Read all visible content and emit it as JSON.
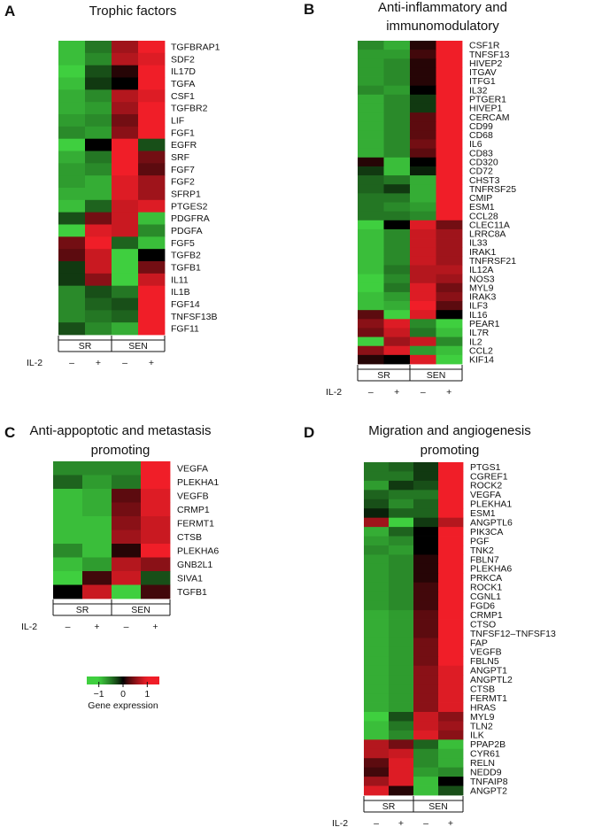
{
  "chart_data": [
    {
      "type": "heatmap",
      "panel_letter": "A",
      "title": [
        "Trophic factors"
      ],
      "columns": [
        "SR -",
        "SR +",
        "SEN -",
        "SEN +"
      ],
      "groups": [
        "SR",
        "SEN"
      ],
      "il2_label": "IL-2",
      "il2_signs": [
        "–",
        "+",
        "–",
        "+"
      ],
      "rows": [
        {
          "gene": "TGFBRAP1",
          "values": [
            -0.9,
            -0.5,
            0.6,
            1.0
          ]
        },
        {
          "gene": "SDF2",
          "values": [
            -0.9,
            -0.6,
            0.7,
            0.9
          ]
        },
        {
          "gene": "IL17D",
          "values": [
            -1.0,
            -0.3,
            0.1,
            1.0
          ]
        },
        {
          "gene": "TGFA",
          "values": [
            -0.9,
            -0.2,
            0.0,
            1.0
          ]
        },
        {
          "gene": "CSF1",
          "values": [
            -0.8,
            -0.6,
            0.7,
            0.9
          ]
        },
        {
          "gene": "TGFBR2",
          "values": [
            -0.8,
            -0.7,
            0.6,
            1.0
          ]
        },
        {
          "gene": "LIF",
          "values": [
            -0.7,
            -0.6,
            0.4,
            1.0
          ]
        },
        {
          "gene": "FGF1",
          "values": [
            -0.6,
            -0.7,
            0.5,
            1.0
          ]
        },
        {
          "gene": "EGFR",
          "values": [
            -1.0,
            0.0,
            1.0,
            -0.3
          ]
        },
        {
          "gene": "SRF",
          "values": [
            -0.8,
            -0.5,
            1.0,
            0.4
          ]
        },
        {
          "gene": "FGF7",
          "values": [
            -0.7,
            -0.6,
            1.0,
            0.3
          ]
        },
        {
          "gene": "FGF2",
          "values": [
            -0.7,
            -0.8,
            0.9,
            0.6
          ]
        },
        {
          "gene": "SFRP1",
          "values": [
            -0.8,
            -0.8,
            0.9,
            0.6
          ]
        },
        {
          "gene": "PTGES2",
          "values": [
            -0.9,
            -0.4,
            0.8,
            0.9
          ]
        },
        {
          "gene": "PDGFRA",
          "values": [
            -0.3,
            0.4,
            0.8,
            -0.9
          ]
        },
        {
          "gene": "PDGFA",
          "values": [
            -1.0,
            0.9,
            0.8,
            -0.6
          ]
        },
        {
          "gene": "FGF5",
          "values": [
            0.4,
            1.0,
            -0.4,
            -0.9
          ]
        },
        {
          "gene": "TGFB2",
          "values": [
            0.3,
            0.8,
            -1.0,
            0.0
          ]
        },
        {
          "gene": "TGFB1",
          "values": [
            -0.2,
            0.8,
            -1.0,
            0.4
          ]
        },
        {
          "gene": "IL11",
          "values": [
            -0.2,
            0.5,
            -1.0,
            0.8
          ]
        },
        {
          "gene": "IL1B",
          "values": [
            -0.6,
            -0.3,
            -0.5,
            1.0
          ]
        },
        {
          "gene": "FGF14",
          "values": [
            -0.6,
            -0.4,
            -0.3,
            1.0
          ]
        },
        {
          "gene": "TNFSF13B",
          "values": [
            -0.6,
            -0.5,
            -0.4,
            1.0
          ]
        },
        {
          "gene": "FGF11",
          "values": [
            -0.3,
            -0.6,
            -0.8,
            1.0
          ]
        }
      ]
    },
    {
      "type": "heatmap",
      "panel_letter": "B",
      "title": [
        "Anti-inflammatory and",
        "immunomodulatory"
      ],
      "columns": [
        "SR -",
        "SR +",
        "SEN -",
        "SEN +"
      ],
      "groups": [
        "SR",
        "SEN"
      ],
      "il2_label": "IL-2",
      "il2_signs": [
        "–",
        "+",
        "–",
        "+"
      ],
      "rows": [
        {
          "gene": "CSF1R",
          "values": [
            -0.6,
            -0.8,
            0.1,
            1.0
          ]
        },
        {
          "gene": "TNFSF13",
          "values": [
            -0.7,
            -0.7,
            0.2,
            1.0
          ]
        },
        {
          "gene": "HIVEP2",
          "values": [
            -0.7,
            -0.6,
            0.1,
            1.0
          ]
        },
        {
          "gene": "ITGAV",
          "values": [
            -0.7,
            -0.6,
            0.1,
            1.0
          ]
        },
        {
          "gene": "ITFG1",
          "values": [
            -0.7,
            -0.6,
            0.1,
            1.0
          ]
        },
        {
          "gene": "IL32",
          "values": [
            -0.6,
            -0.7,
            0.0,
            1.0
          ]
        },
        {
          "gene": "PTGER1",
          "values": [
            -0.8,
            -0.6,
            -0.2,
            1.0
          ]
        },
        {
          "gene": "HIVEP1",
          "values": [
            -0.8,
            -0.6,
            -0.2,
            1.0
          ]
        },
        {
          "gene": "CERCAM",
          "values": [
            -0.8,
            -0.6,
            0.3,
            1.0
          ]
        },
        {
          "gene": "CD99",
          "values": [
            -0.8,
            -0.6,
            0.3,
            1.0
          ]
        },
        {
          "gene": "CD68",
          "values": [
            -0.8,
            -0.6,
            0.3,
            1.0
          ]
        },
        {
          "gene": "IL6",
          "values": [
            -0.8,
            -0.6,
            0.4,
            1.0
          ]
        },
        {
          "gene": "CD83",
          "values": [
            -0.8,
            -0.6,
            0.3,
            1.0
          ]
        },
        {
          "gene": "CD320",
          "values": [
            0.1,
            -0.9,
            0.0,
            1.0
          ]
        },
        {
          "gene": "CD72",
          "values": [
            -0.2,
            -0.9,
            -0.1,
            1.0
          ]
        },
        {
          "gene": "CHST3",
          "values": [
            -0.4,
            -0.5,
            -0.8,
            1.0
          ]
        },
        {
          "gene": "TNFRSF25",
          "values": [
            -0.4,
            -0.2,
            -0.8,
            1.0
          ]
        },
        {
          "gene": "CMIP",
          "values": [
            -0.5,
            -0.5,
            -0.8,
            1.0
          ]
        },
        {
          "gene": "ESM1",
          "values": [
            -0.5,
            -0.6,
            -0.7,
            1.0
          ]
        },
        {
          "gene": "CCL28",
          "values": [
            -0.5,
            -0.5,
            -0.6,
            1.0
          ]
        },
        {
          "gene": "CLEC11A",
          "values": [
            -1.0,
            0.0,
            0.9,
            0.4
          ]
        },
        {
          "gene": "LRRC8A",
          "values": [
            -0.9,
            -0.6,
            0.8,
            0.6
          ]
        },
        {
          "gene": "IL33",
          "values": [
            -0.9,
            -0.6,
            0.8,
            0.6
          ]
        },
        {
          "gene": "IRAK1",
          "values": [
            -0.9,
            -0.6,
            0.8,
            0.6
          ]
        },
        {
          "gene": "TNFRSF21",
          "values": [
            -0.9,
            -0.6,
            0.8,
            0.6
          ]
        },
        {
          "gene": "IL12A",
          "values": [
            -0.9,
            -0.5,
            0.7,
            0.7
          ]
        },
        {
          "gene": "NOS3",
          "values": [
            -1.0,
            -0.6,
            0.7,
            0.6
          ]
        },
        {
          "gene": "MYL9",
          "values": [
            -1.0,
            -0.5,
            0.9,
            0.4
          ]
        },
        {
          "gene": "IRAK3",
          "values": [
            -0.9,
            -0.7,
            0.9,
            0.5
          ]
        },
        {
          "gene": "ILF3",
          "values": [
            -0.9,
            -0.8,
            1.0,
            0.3
          ]
        },
        {
          "gene": "IL16",
          "values": [
            0.3,
            -1.0,
            0.9,
            0.0
          ]
        },
        {
          "gene": "PEAR1",
          "values": [
            0.5,
            0.9,
            -0.6,
            -1.0
          ]
        },
        {
          "gene": "IL7R",
          "values": [
            0.4,
            0.8,
            -0.5,
            -0.9
          ]
        },
        {
          "gene": "IL2",
          "values": [
            -1.0,
            0.6,
            0.8,
            -0.6
          ]
        },
        {
          "gene": "CCL2",
          "values": [
            0.5,
            0.9,
            -0.7,
            -0.9
          ]
        },
        {
          "gene": "KIF14",
          "values": [
            0.1,
            0.0,
            0.9,
            -1.0
          ]
        }
      ]
    },
    {
      "type": "heatmap",
      "panel_letter": "C",
      "title": [
        "Anti-appoptotic and metastasis",
        "promoting"
      ],
      "columns": [
        "SR -",
        "SR +",
        "SEN -",
        "SEN +"
      ],
      "groups": [
        "SR",
        "SEN"
      ],
      "il2_label": "IL-2",
      "il2_signs": [
        "–",
        "+",
        "–",
        "+"
      ],
      "rows": [
        {
          "gene": "VEGFA",
          "values": [
            -0.6,
            -0.6,
            -0.6,
            1.0
          ]
        },
        {
          "gene": "PLEKHA1",
          "values": [
            -0.4,
            -0.7,
            -0.5,
            1.0
          ]
        },
        {
          "gene": "VEGFB",
          "values": [
            -0.9,
            -0.8,
            0.3,
            0.9
          ]
        },
        {
          "gene": "CRMP1",
          "values": [
            -0.9,
            -0.8,
            0.4,
            0.9
          ]
        },
        {
          "gene": "FERMT1",
          "values": [
            -0.9,
            -0.9,
            0.5,
            0.8
          ]
        },
        {
          "gene": "CTSB",
          "values": [
            -0.9,
            -0.9,
            0.6,
            0.8
          ]
        },
        {
          "gene": "PLEKHA6",
          "values": [
            -0.6,
            -0.9,
            0.1,
            1.0
          ]
        },
        {
          "gene": "GNB2L1",
          "values": [
            -0.9,
            -0.7,
            0.7,
            0.5
          ]
        },
        {
          "gene": "SIVA1",
          "values": [
            -1.0,
            0.2,
            0.8,
            -0.3
          ]
        },
        {
          "gene": "TGFB1",
          "values": [
            0.0,
            0.8,
            -1.0,
            0.2
          ]
        }
      ]
    },
    {
      "type": "heatmap",
      "panel_letter": "D",
      "title": [
        "Migration and angiogenesis",
        "promoting"
      ],
      "columns": [
        "SR -",
        "SR +",
        "SEN -",
        "SEN +"
      ],
      "groups": [
        "SR",
        "SEN"
      ],
      "il2_label": "IL-2",
      "il2_signs": [
        "–",
        "+",
        "–",
        "+"
      ],
      "rows": [
        {
          "gene": "PTGS1",
          "values": [
            -0.5,
            -0.4,
            -0.2,
            1.0
          ]
        },
        {
          "gene": "CGREF1",
          "values": [
            -0.5,
            -0.5,
            -0.2,
            1.0
          ]
        },
        {
          "gene": "ROCK2",
          "values": [
            -0.7,
            -0.2,
            -0.3,
            1.0
          ]
        },
        {
          "gene": "VEGFA",
          "values": [
            -0.4,
            -0.5,
            -0.5,
            1.0
          ]
        },
        {
          "gene": "PLEKHA1",
          "values": [
            -0.3,
            -0.6,
            -0.4,
            1.0
          ]
        },
        {
          "gene": "ESM1",
          "values": [
            -0.1,
            -0.4,
            -0.4,
            1.0
          ]
        },
        {
          "gene": "ANGPTL6",
          "values": [
            0.6,
            -1.0,
            -0.2,
            0.7
          ]
        },
        {
          "gene": "PIK3CA",
          "values": [
            -0.8,
            -0.4,
            0.0,
            1.0
          ]
        },
        {
          "gene": "PGF",
          "values": [
            -0.7,
            -0.6,
            0.0,
            1.0
          ]
        },
        {
          "gene": "TNK2",
          "values": [
            -0.6,
            -0.7,
            0.0,
            1.0
          ]
        },
        {
          "gene": "FBLN7",
          "values": [
            -0.7,
            -0.6,
            0.1,
            1.0
          ]
        },
        {
          "gene": "PLEKHA6",
          "values": [
            -0.7,
            -0.6,
            0.1,
            1.0
          ]
        },
        {
          "gene": "PRKCA",
          "values": [
            -0.7,
            -0.6,
            0.1,
            1.0
          ]
        },
        {
          "gene": "ROCK1",
          "values": [
            -0.7,
            -0.6,
            0.2,
            1.0
          ]
        },
        {
          "gene": "CGNL1",
          "values": [
            -0.7,
            -0.6,
            0.2,
            1.0
          ]
        },
        {
          "gene": "FGD6",
          "values": [
            -0.7,
            -0.6,
            0.2,
            1.0
          ]
        },
        {
          "gene": "CRMP1",
          "values": [
            -0.8,
            -0.7,
            0.3,
            1.0
          ]
        },
        {
          "gene": "CTSO",
          "values": [
            -0.8,
            -0.7,
            0.3,
            1.0
          ]
        },
        {
          "gene": "TNFSF12–TNFSF13",
          "values": [
            -0.8,
            -0.7,
            0.3,
            1.0
          ]
        },
        {
          "gene": "FAP",
          "values": [
            -0.8,
            -0.7,
            0.4,
            1.0
          ]
        },
        {
          "gene": "VEGFB",
          "values": [
            -0.8,
            -0.7,
            0.4,
            1.0
          ]
        },
        {
          "gene": "FBLN5",
          "values": [
            -0.8,
            -0.7,
            0.4,
            1.0
          ]
        },
        {
          "gene": "ANGPT1",
          "values": [
            -0.8,
            -0.7,
            0.5,
            0.9
          ]
        },
        {
          "gene": "ANGPTL2",
          "values": [
            -0.8,
            -0.7,
            0.5,
            0.9
          ]
        },
        {
          "gene": "CTSB",
          "values": [
            -0.8,
            -0.7,
            0.5,
            0.9
          ]
        },
        {
          "gene": "FERMT1",
          "values": [
            -0.8,
            -0.7,
            0.5,
            0.9
          ]
        },
        {
          "gene": "HRAS",
          "values": [
            -0.8,
            -0.7,
            0.5,
            0.9
          ]
        },
        {
          "gene": "MYL9",
          "values": [
            -1.0,
            -0.3,
            0.8,
            0.5
          ]
        },
        {
          "gene": "TLN2",
          "values": [
            -0.9,
            -0.5,
            0.8,
            0.6
          ]
        },
        {
          "gene": "ILK",
          "values": [
            -0.9,
            -0.6,
            0.9,
            0.5
          ]
        },
        {
          "gene": "PPAP2B",
          "values": [
            0.7,
            0.4,
            -0.4,
            -0.9
          ]
        },
        {
          "gene": "CYR61",
          "values": [
            0.7,
            0.8,
            -0.6,
            -0.8
          ]
        },
        {
          "gene": "RELN",
          "values": [
            0.3,
            0.9,
            -0.6,
            -0.8
          ]
        },
        {
          "gene": "NEDD9",
          "values": [
            0.2,
            0.9,
            -0.7,
            -0.6
          ]
        },
        {
          "gene": "TNFAIP8",
          "values": [
            0.6,
            0.9,
            -0.9,
            0.0
          ]
        },
        {
          "gene": "ANGPT2",
          "values": [
            0.9,
            0.1,
            -0.9,
            -0.3
          ]
        }
      ]
    }
  ],
  "legend": {
    "title": "Gene expression",
    "ticks": [
      -1,
      0,
      1
    ],
    "tick_labels": [
      "−1",
      "0",
      "1"
    ],
    "range": [
      -1.5,
      1.5
    ],
    "colors": {
      "low": "#3fcf3f",
      "mid": "#000000",
      "high": "#f01e28"
    }
  }
}
